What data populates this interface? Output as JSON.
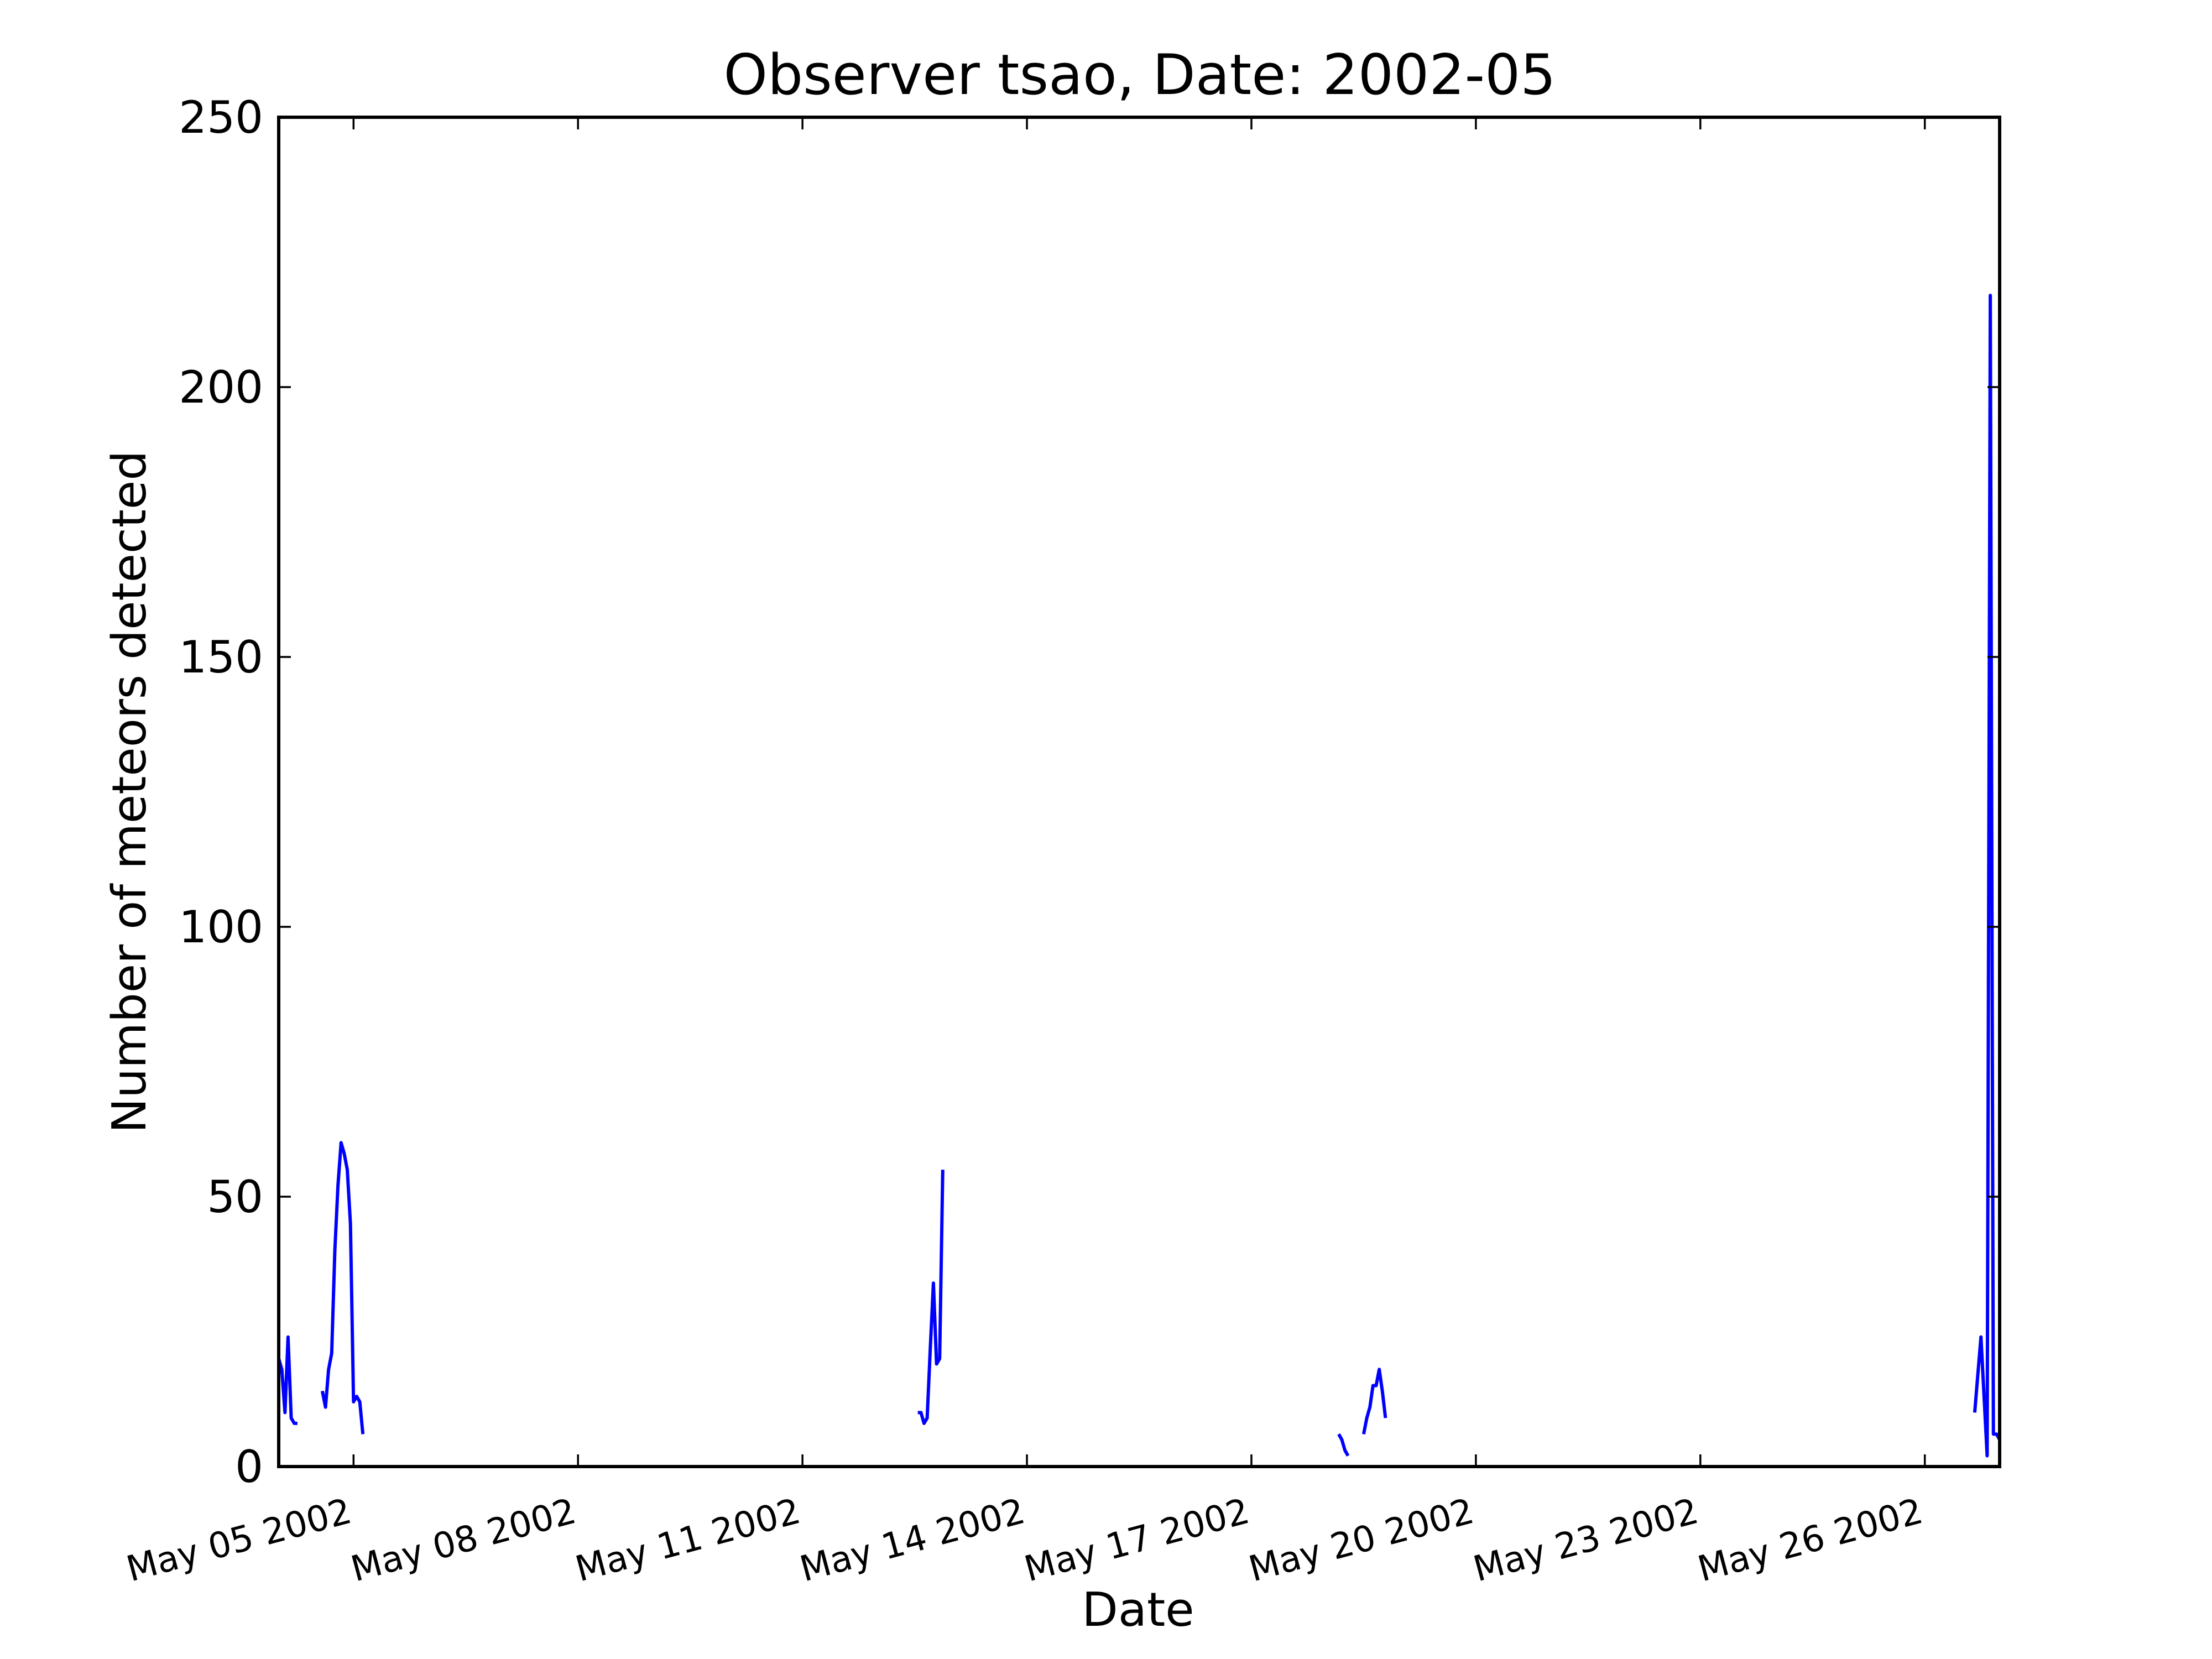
{
  "chart_data": {
    "type": "line",
    "title": "Observer tsao, Date: 2002-05",
    "xlabel": "Date",
    "ylabel": "Number of meteors detected",
    "ylim": [
      0,
      250
    ],
    "yticks": [
      0,
      50,
      100,
      150,
      200,
      250
    ],
    "xlim": [
      "2002-05-05T00:00",
      "2002-05-28T00:00"
    ],
    "xticks": [
      {
        "date": "2002-05-06",
        "label": "May 05 2002"
      },
      {
        "date": "2002-05-09",
        "label": "May 08 2002"
      },
      {
        "date": "2002-05-12",
        "label": "May 11 2002"
      },
      {
        "date": "2002-05-15",
        "label": "May 14 2002"
      },
      {
        "date": "2002-05-18",
        "label": "May 17 2002"
      },
      {
        "date": "2002-05-21",
        "label": "May 20 2002"
      },
      {
        "date": "2002-05-24",
        "label": "May 23 2002"
      },
      {
        "date": "2002-05-27",
        "label": "May 26 2002"
      }
    ],
    "grid": false,
    "color": "#0000ff",
    "segments": [
      [
        {
          "x": "2002-05-05T00:00",
          "y": 20
        },
        {
          "x": "2002-05-05T01:00",
          "y": 18
        },
        {
          "x": "2002-05-05T02:00",
          "y": 10
        },
        {
          "x": "2002-05-05T03:00",
          "y": 24
        },
        {
          "x": "2002-05-05T04:00",
          "y": 9
        },
        {
          "x": "2002-05-05T05:00",
          "y": 8
        },
        {
          "x": "2002-05-05T06:00",
          "y": 8
        }
      ],
      [
        {
          "x": "2002-05-05T14:00",
          "y": 14
        },
        {
          "x": "2002-05-05T15:00",
          "y": 11
        },
        {
          "x": "2002-05-05T16:00",
          "y": 18
        },
        {
          "x": "2002-05-05T17:00",
          "y": 21
        },
        {
          "x": "2002-05-05T18:00",
          "y": 40
        },
        {
          "x": "2002-05-05T19:00",
          "y": 52
        },
        {
          "x": "2002-05-05T20:00",
          "y": 60
        },
        {
          "x": "2002-05-05T21:00",
          "y": 58
        },
        {
          "x": "2002-05-05T22:00",
          "y": 55
        },
        {
          "x": "2002-05-05T23:00",
          "y": 45
        },
        {
          "x": "2002-05-06T00:00",
          "y": 12
        },
        {
          "x": "2002-05-06T01:00",
          "y": 13
        },
        {
          "x": "2002-05-06T02:00",
          "y": 12
        },
        {
          "x": "2002-05-06T03:00",
          "y": 6
        }
      ],
      [
        {
          "x": "2002-05-13T13:00",
          "y": 10
        },
        {
          "x": "2002-05-13T14:00",
          "y": 10
        },
        {
          "x": "2002-05-13T15:00",
          "y": 8
        },
        {
          "x": "2002-05-13T16:00",
          "y": 9
        },
        {
          "x": "2002-05-13T17:00",
          "y": 22
        },
        {
          "x": "2002-05-13T18:00",
          "y": 34
        },
        {
          "x": "2002-05-13T19:00",
          "y": 19
        },
        {
          "x": "2002-05-13T20:00",
          "y": 20
        },
        {
          "x": "2002-05-13T21:00",
          "y": 55
        }
      ],
      [
        {
          "x": "2002-05-19T04:00",
          "y": 6
        },
        {
          "x": "2002-05-19T05:00",
          "y": 5
        },
        {
          "x": "2002-05-19T06:00",
          "y": 3
        },
        {
          "x": "2002-05-19T07:00",
          "y": 2
        }
      ],
      [
        {
          "x": "2002-05-19T12:00",
          "y": 6
        },
        {
          "x": "2002-05-19T13:00",
          "y": 9
        },
        {
          "x": "2002-05-19T14:00",
          "y": 11
        },
        {
          "x": "2002-05-19T15:00",
          "y": 15
        },
        {
          "x": "2002-05-19T16:00",
          "y": 15
        },
        {
          "x": "2002-05-19T17:00",
          "y": 18
        },
        {
          "x": "2002-05-19T18:00",
          "y": 14
        },
        {
          "x": "2002-05-19T19:00",
          "y": 9
        }
      ],
      [
        {
          "x": "2002-05-27T16:00",
          "y": 10
        },
        {
          "x": "2002-05-27T17:00",
          "y": 17
        },
        {
          "x": "2002-05-27T18:00",
          "y": 24
        },
        {
          "x": "2002-05-27T19:00",
          "y": 13
        },
        {
          "x": "2002-05-27T20:00",
          "y": 2
        },
        {
          "x": "2002-05-27T21:00",
          "y": 217
        },
        {
          "x": "2002-05-27T22:00",
          "y": 6
        },
        {
          "x": "2002-05-27T23:00",
          "y": 6
        },
        {
          "x": "2002-05-28T00:00",
          "y": 5
        }
      ]
    ]
  }
}
